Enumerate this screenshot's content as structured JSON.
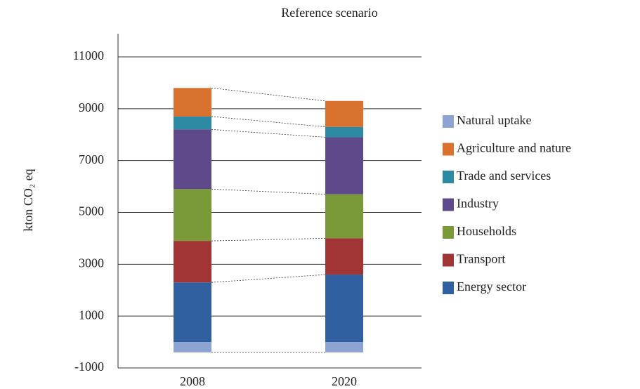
{
  "chart_data": {
    "type": "stacked_bar",
    "title": "Reference scenario",
    "y_label": "kton CO₂ eq",
    "categories": [
      "2008",
      "2020"
    ],
    "series": [
      {
        "name": "Natural uptake",
        "color": "#8da3d1",
        "values": [
          -400,
          -400
        ]
      },
      {
        "name": "Agriculture and nature",
        "color": "#d9722e",
        "values": [
          1100,
          1000
        ]
      },
      {
        "name": "Trade and services",
        "color": "#2e8aa3",
        "values": [
          500,
          400
        ]
      },
      {
        "name": "Industry",
        "color": "#5e4a8a",
        "values": [
          2300,
          2200
        ]
      },
      {
        "name": "Households",
        "color": "#7a9a3a",
        "values": [
          2000,
          1700
        ]
      },
      {
        "name": "Transport",
        "color": "#a13434",
        "values": [
          1600,
          1400
        ]
      },
      {
        "name": "Energy sector",
        "color": "#30609f",
        "values": [
          2300,
          2600
        ]
      }
    ],
    "ylim": [
      -1000,
      11000
    ],
    "yticks": [
      -1000,
      1000,
      3000,
      5000,
      7000,
      9000,
      11000
    ],
    "grid": true,
    "legend": "right"
  }
}
